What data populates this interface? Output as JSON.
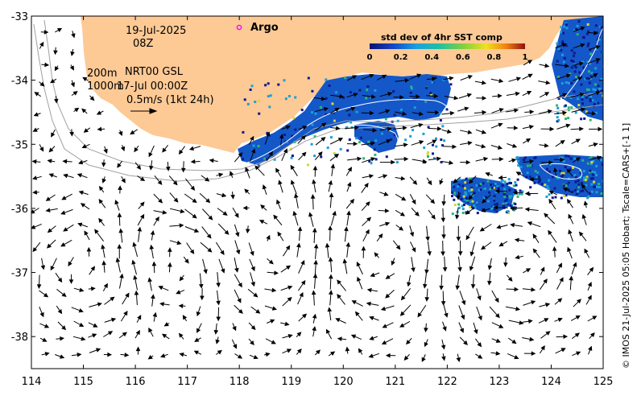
{
  "map": {
    "lon_range": [
      114,
      125
    ],
    "lat_range": [
      -38.5,
      -33
    ],
    "x_ticks": [
      "114",
      "115",
      "116",
      "117",
      "118",
      "119",
      "120",
      "121",
      "122",
      "123",
      "124",
      "125"
    ],
    "y_ticks": [
      "-33",
      "-34",
      "-35",
      "-36",
      "-37",
      "-38"
    ],
    "land_color": "#fdc995",
    "sst_colors": [
      "#0c1a8c",
      "#1457c8",
      "#19a0d8",
      "#2bb673",
      "#d8d832",
      "#c0181a"
    ]
  },
  "annotations": {
    "date": "19-Jul-2025",
    "time": "08Z",
    "depth1": "200m",
    "product": "NRT00 GSL",
    "depth2": "1000m",
    "ref_time": "17-Jul 00:00Z",
    "scale": "0.5m/s (1kt 24h)"
  },
  "legend": {
    "argo_label": "Argo",
    "argo_color": "#ff00ff"
  },
  "colorbar": {
    "title": "std dev of 4hr SST comp",
    "ticks": [
      "0",
      "0.2",
      "0.4",
      "0.6",
      "0.8",
      "1"
    ]
  },
  "credit": "© IMOS 21-Jul-2025 05:05 Hobart; Tscale=CARS+[-1 1]"
}
